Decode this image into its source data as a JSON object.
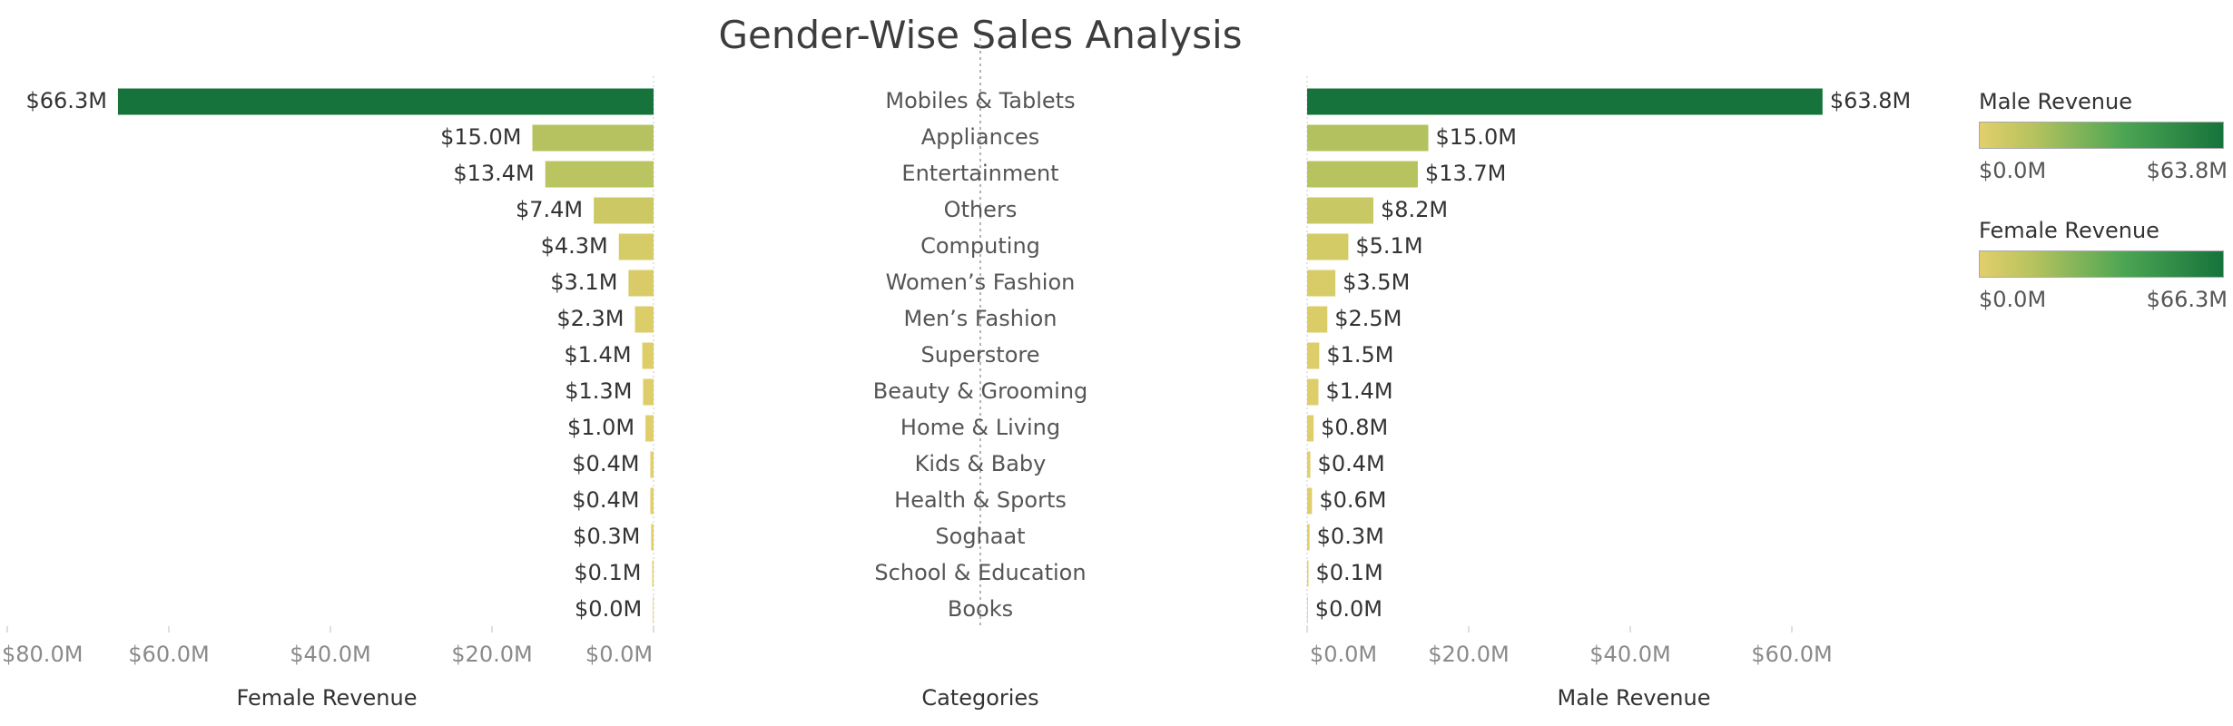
{
  "title": "Gender-Wise Sales Analysis",
  "colors": {
    "low": "#e2cf6a",
    "mid": "#b6c35f",
    "high": "#16733b"
  },
  "chart_data": {
    "type": "bar",
    "title": "Gender-Wise Sales Analysis",
    "categories_label": "Categories",
    "categories": [
      "Mobiles & Tablets",
      "Appliances",
      "Entertainment",
      "Others",
      "Computing",
      "Women’s Fashion",
      "Men’s Fashion",
      "Superstore",
      "Beauty & Grooming",
      "Home & Living",
      "Kids & Baby",
      "Health & Sports",
      "Soghaat",
      "School & Education",
      "Books"
    ],
    "series": [
      {
        "name": "Female Revenue",
        "values": [
          66.3,
          15.0,
          13.4,
          7.4,
          4.3,
          3.1,
          2.3,
          1.4,
          1.3,
          1.0,
          0.4,
          0.4,
          0.3,
          0.1,
          0.0
        ],
        "labels": [
          "$66.3M",
          "$15.0M",
          "$13.4M",
          "$7.4M",
          "$4.3M",
          "$3.1M",
          "$2.3M",
          "$1.4M",
          "$1.3M",
          "$1.0M",
          "$0.4M",
          "$0.4M",
          "$0.3M",
          "$0.1M",
          "$0.0M"
        ],
        "xlabel": "Female Revenue",
        "xlim": [
          0,
          80
        ],
        "ticks": [
          80,
          60,
          40,
          20,
          0
        ],
        "tick_labels": [
          "$80.0M",
          "$60.0M",
          "$40.0M",
          "$20.0M",
          "$0.0M"
        ],
        "direction": "reversed"
      },
      {
        "name": "Male Revenue",
        "values": [
          63.8,
          15.0,
          13.7,
          8.2,
          5.1,
          3.5,
          2.5,
          1.5,
          1.4,
          0.8,
          0.4,
          0.6,
          0.3,
          0.1,
          0.0
        ],
        "labels": [
          "$63.8M",
          "$15.0M",
          "$13.7M",
          "$8.2M",
          "$5.1M",
          "$3.5M",
          "$2.5M",
          "$1.5M",
          "$1.4M",
          "$0.8M",
          "$0.4M",
          "$0.6M",
          "$0.3M",
          "$0.1M",
          "$0.0M"
        ],
        "xlabel": "Male Revenue",
        "xlim": [
          0,
          80
        ],
        "ticks": [
          0,
          20,
          40,
          60
        ],
        "tick_labels": [
          "$0.0M",
          "$20.0M",
          "$40.0M",
          "$60.0M"
        ],
        "direction": "normal"
      }
    ],
    "units": "$M",
    "grid": false
  },
  "legends": [
    {
      "title": "Male Revenue",
      "min_label": "$0.0M",
      "max_label": "$63.8M"
    },
    {
      "title": "Female Revenue",
      "min_label": "$0.0M",
      "max_label": "$66.3M"
    }
  ]
}
